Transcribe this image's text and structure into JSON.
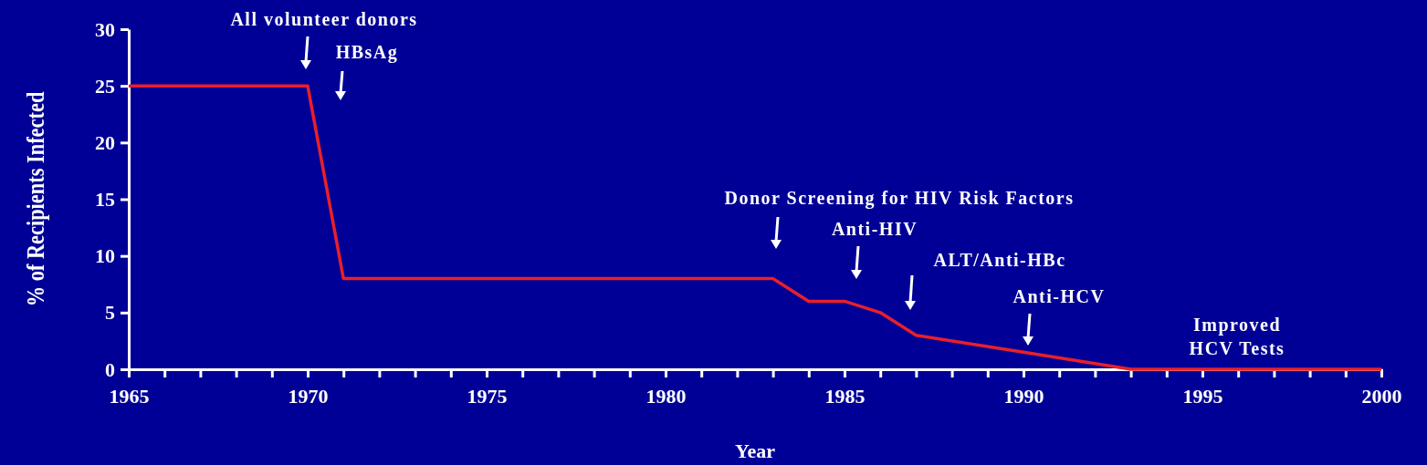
{
  "chart_data": {
    "type": "line",
    "xlabel": "Year",
    "ylabel": "% of Recipients Infected",
    "x": [
      1965,
      1970,
      1971,
      1983,
      1984,
      1985,
      1986,
      1987,
      1990,
      1992,
      1993,
      2000
    ],
    "series": [
      {
        "color": "#e8202a",
        "values": [
          25,
          25,
          8,
          8,
          6,
          6,
          5,
          3,
          1.5,
          0.5,
          0,
          0
        ]
      }
    ],
    "xlim": [
      1965,
      2000
    ],
    "xticks": [
      1965,
      {
        "value": 1966,
        "label": null
      },
      {
        "value": 1967,
        "label": null
      },
      {
        "value": 1968,
        "label": null
      },
      {
        "value": 1969,
        "label": null
      },
      1970,
      {
        "value": 1971,
        "label": null
      },
      {
        "value": 1972,
        "label": null
      },
      {
        "value": 1973,
        "label": null
      },
      {
        "value": 1974,
        "label": null
      },
      1975,
      {
        "value": 1976,
        "label": null
      },
      {
        "value": 1977,
        "label": null
      },
      {
        "value": 1978,
        "label": null
      },
      {
        "value": 1979,
        "label": null
      },
      1980,
      {
        "value": 1981,
        "label": null
      },
      {
        "value": 1982,
        "label": null
      },
      {
        "value": 1983,
        "label": null
      },
      {
        "value": 1984,
        "label": null
      },
      1985,
      {
        "value": 1986,
        "label": null
      },
      {
        "value": 1987,
        "label": null
      },
      {
        "value": 1988,
        "label": null
      },
      {
        "value": 1989,
        "label": null
      },
      1990,
      {
        "value": 1991,
        "label": null
      },
      {
        "value": 1992,
        "label": null
      },
      {
        "value": 1993,
        "label": null
      },
      {
        "value": 1994,
        "label": null
      },
      1995,
      {
        "value": 1996,
        "label": null
      },
      {
        "value": 1997,
        "label": null
      },
      {
        "value": 1998,
        "label": null
      },
      {
        "value": 1999,
        "label": null
      },
      2000
    ],
    "ylim": [
      0,
      30
    ],
    "yticks": [
      0,
      5,
      10,
      15,
      20,
      25,
      30
    ],
    "grid": false,
    "legend": false,
    "marker": "none",
    "line_style": "solid",
    "annotations": [
      "All volunteer donors",
      "HBsAg",
      "Donor Screening for HIV Risk Factors",
      "Anti-HIV",
      "ALT/Anti-HBc",
      "Anti-HCV",
      "Improved HCV Tests"
    ]
  }
}
